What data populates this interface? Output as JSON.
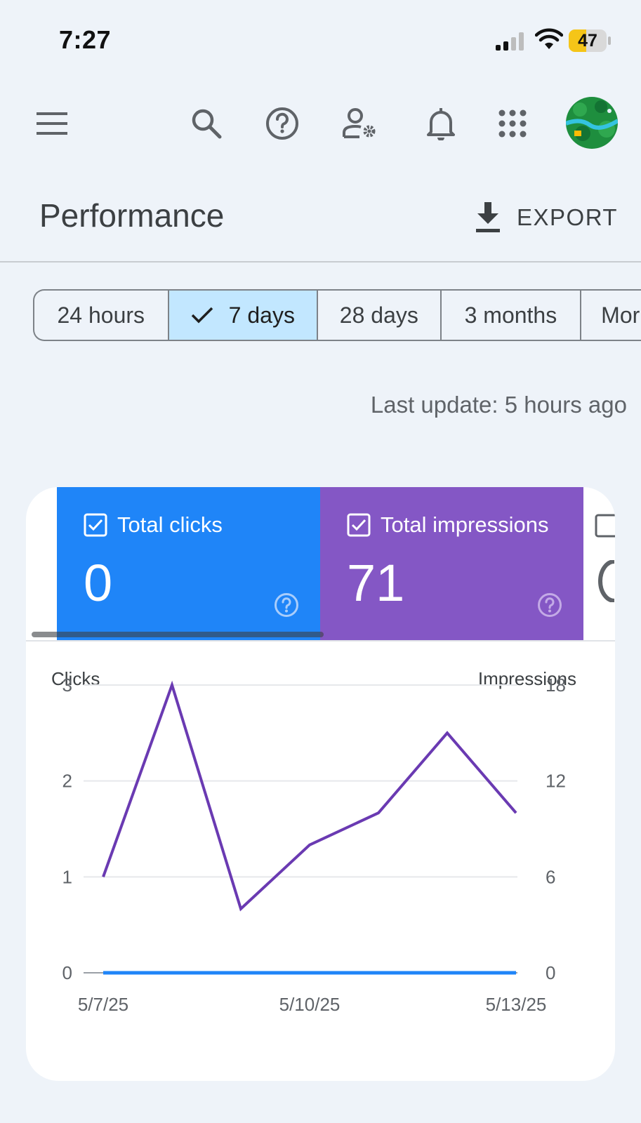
{
  "status_bar": {
    "time": "7:27",
    "battery": "47",
    "battery_level": 0.47,
    "icons": [
      "signal-icon",
      "wifi-icon",
      "battery-icon"
    ]
  },
  "toolbar": {
    "icons": [
      "menu-icon",
      "search-icon",
      "help-icon",
      "manage-users-icon",
      "notifications-icon",
      "apps-grid-icon",
      "avatar"
    ]
  },
  "header": {
    "title": "Performance",
    "export_label": "EXPORT"
  },
  "date_range": {
    "options": [
      "24 hours",
      "7 days",
      "28 days",
      "3 months",
      "Mor"
    ],
    "selected": "7 days"
  },
  "last_update": "Last update: 5 hours ago",
  "metrics": [
    {
      "label": "Total clicks",
      "value": "0",
      "color": "#1f85f8",
      "checked": true
    },
    {
      "label": "Total impressions",
      "value": "71",
      "color": "#8457c5",
      "checked": true
    }
  ],
  "chart_data": {
    "type": "line",
    "x": [
      "5/7/25",
      "5/8/25",
      "5/9/25",
      "5/10/25",
      "5/11/25",
      "5/12/25",
      "5/13/25"
    ],
    "x_tick_labels": [
      "5/7/25",
      "5/10/25",
      "5/13/25"
    ],
    "left_axis": {
      "title": "Clicks",
      "ticks": [
        "0",
        "1",
        "2",
        "3"
      ],
      "range": [
        0,
        3
      ]
    },
    "right_axis": {
      "title": "Impressions",
      "ticks": [
        "0",
        "6",
        "12",
        "18"
      ],
      "range": [
        0,
        18
      ]
    },
    "series": [
      {
        "name": "Total clicks",
        "axis": "left",
        "color": "#1f85f8",
        "values": [
          0,
          0,
          0,
          0,
          0,
          0,
          0
        ]
      },
      {
        "name": "Total impressions",
        "axis": "right",
        "color": "#6a3ab2",
        "values": [
          6,
          18,
          4,
          8,
          10,
          15,
          10
        ]
      }
    ],
    "grid": true
  }
}
